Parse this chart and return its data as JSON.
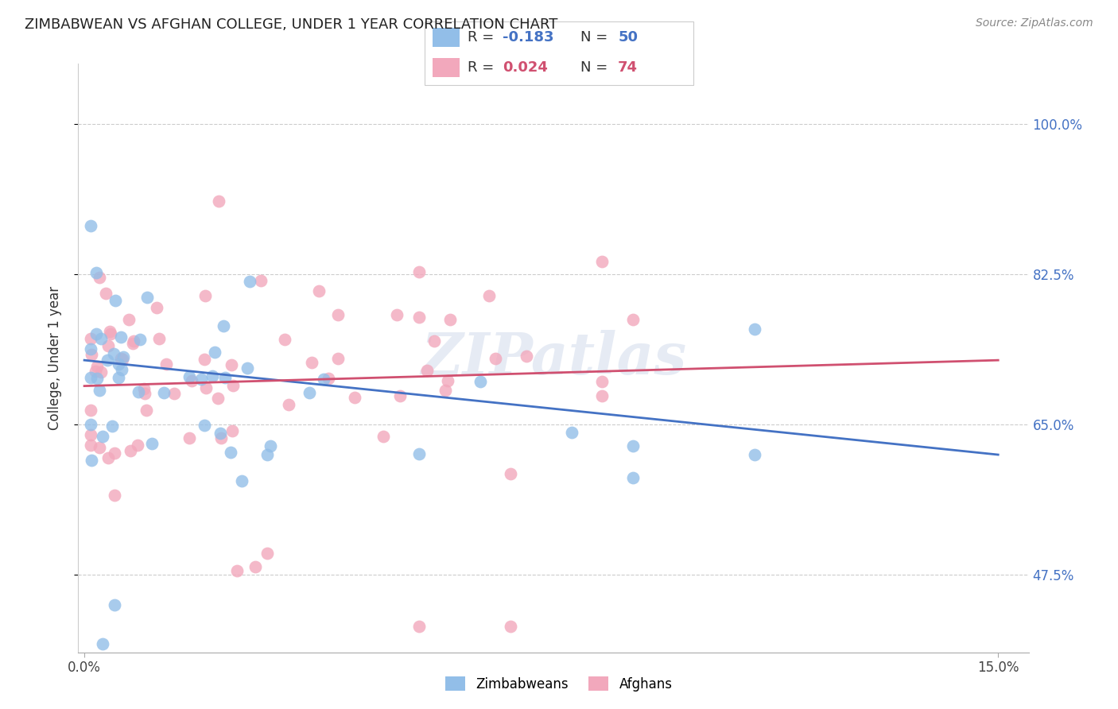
{
  "title": "ZIMBABWEAN VS AFGHAN COLLEGE, UNDER 1 YEAR CORRELATION CHART",
  "source": "Source: ZipAtlas.com",
  "ylabel": "College, Under 1 year",
  "zim_color": "#92BEE8",
  "afg_color": "#F2A8BC",
  "zim_line_color": "#4472C4",
  "afg_line_color": "#D05070",
  "legend_R_zim": "-0.183",
  "legend_N_zim": "50",
  "legend_R_afg": "0.024",
  "legend_N_afg": "74",
  "watermark": "ZIPatlas",
  "ytick_vals": [
    0.475,
    0.65,
    0.825,
    1.0
  ],
  "ytick_labels": [
    "47.5%",
    "65.0%",
    "82.5%",
    "100.0%"
  ],
  "xlim": [
    -0.001,
    0.155
  ],
  "ylim": [
    0.385,
    1.07
  ],
  "zim_line_x0": 0.0,
  "zim_line_y0": 0.725,
  "zim_line_x1": 0.15,
  "zim_line_y1": 0.615,
  "afg_line_x0": 0.0,
  "afg_line_y0": 0.695,
  "afg_line_x1": 0.15,
  "afg_line_y1": 0.725
}
